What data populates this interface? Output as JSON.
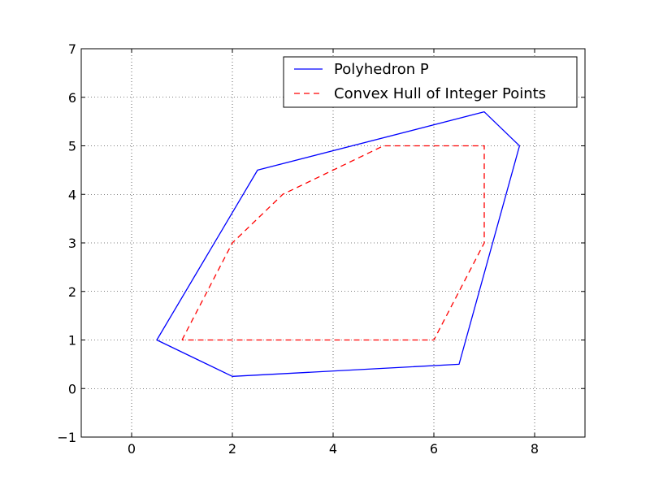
{
  "chart_data": {
    "type": "line",
    "title": "",
    "xlabel": "",
    "ylabel": "",
    "xlim": [
      -1,
      9
    ],
    "ylim": [
      -1,
      7
    ],
    "x_ticks": [
      0,
      2,
      4,
      6,
      8
    ],
    "y_ticks": [
      -1,
      0,
      1,
      2,
      3,
      4,
      5,
      6,
      7
    ],
    "x_tick_labels": [
      "0",
      "2",
      "4",
      "6",
      "8"
    ],
    "y_tick_labels": [
      "−1",
      "0",
      "1",
      "2",
      "3",
      "4",
      "5",
      "6",
      "7"
    ],
    "grid": true,
    "legend_position": "top-right",
    "series": [
      {
        "name": "Polyhedron P",
        "color": "#0000ff",
        "linestyle": "solid",
        "x": [
          0.5,
          2.5,
          7.0,
          7.7,
          6.5,
          2.0,
          0.5
        ],
        "y": [
          1.0,
          4.5,
          5.7,
          5.0,
          0.5,
          0.25,
          1.0
        ]
      },
      {
        "name": "Convex Hull of Integer Points",
        "color": "#ff0000",
        "linestyle": "dashed",
        "x": [
          1,
          2,
          3,
          5,
          7,
          7,
          6,
          1
        ],
        "y": [
          1,
          3,
          4,
          5,
          5,
          3,
          1,
          1
        ]
      }
    ]
  }
}
